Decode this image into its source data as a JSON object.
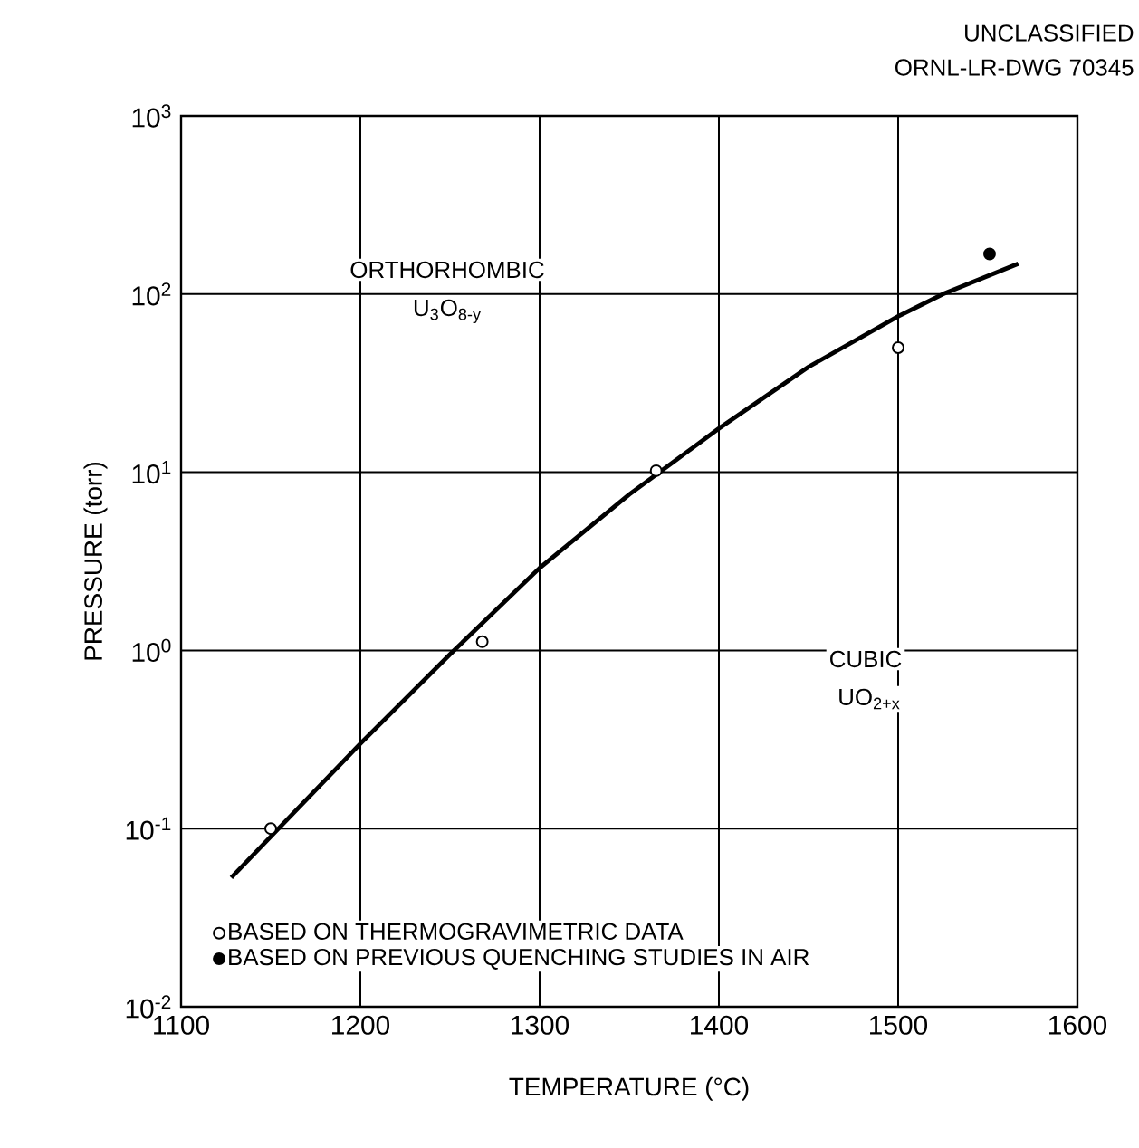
{
  "chart_data": {
    "type": "scatter",
    "xlabel": "TEMPERATURE (°C)",
    "ylabel": "PRESSURE  (torr)",
    "xlim": [
      1100,
      1600
    ],
    "xticks": [
      1100,
      1200,
      1300,
      1400,
      1500,
      1600
    ],
    "ylim": [
      0.01,
      1000
    ],
    "yticks": [
      {
        "value": 0.01,
        "label": "10$^{-2}$"
      },
      {
        "value": 0.1,
        "label": "10$^{-1}$"
      },
      {
        "value": 1,
        "label": "10$^{0}$"
      },
      {
        "value": 10,
        "label": "10$^{1}$"
      },
      {
        "value": 100,
        "label": "10$^{2}$"
      },
      {
        "value": 1000,
        "label": "10$^{3}$"
      }
    ],
    "log": "y",
    "grid": true,
    "legend": "bottom left",
    "series": [
      {
        "name": "BASED ON THERMOGRAVIMETRIC DATA",
        "marker": "circle",
        "color": "#000000",
        "x": [
          1150,
          1268,
          1365,
          1500
        ],
        "values": [
          0.1,
          1.12,
          10.2,
          50
        ]
      },
      {
        "name": "BASED ON PREVIOUS QUENCHING STUDIES IN AIR",
        "marker": "circle",
        "color": "#000000",
        "x": [
          1551
        ],
        "values": [
          168
        ]
      },
      {
        "type": "line",
        "marker": "none",
        "line_style": "solid",
        "color": "#000000",
        "x": [
          1128,
          1150,
          1200,
          1250,
          1300,
          1350,
          1400,
          1450,
          1500,
          1525,
          1567
        ],
        "values": [
          0.053,
          0.09,
          0.3,
          0.95,
          2.9,
          7.5,
          17.6,
          39,
          75,
          100,
          148
        ]
      }
    ],
    "annotations": [
      "UNCLASSIFIED",
      "ORNL-LR-DWG 70345",
      "ORTHORHOMBIC",
      "U$_{3}$O$_{8-y}$",
      "CUBIC",
      "UO$_{2+x}$"
    ]
  }
}
